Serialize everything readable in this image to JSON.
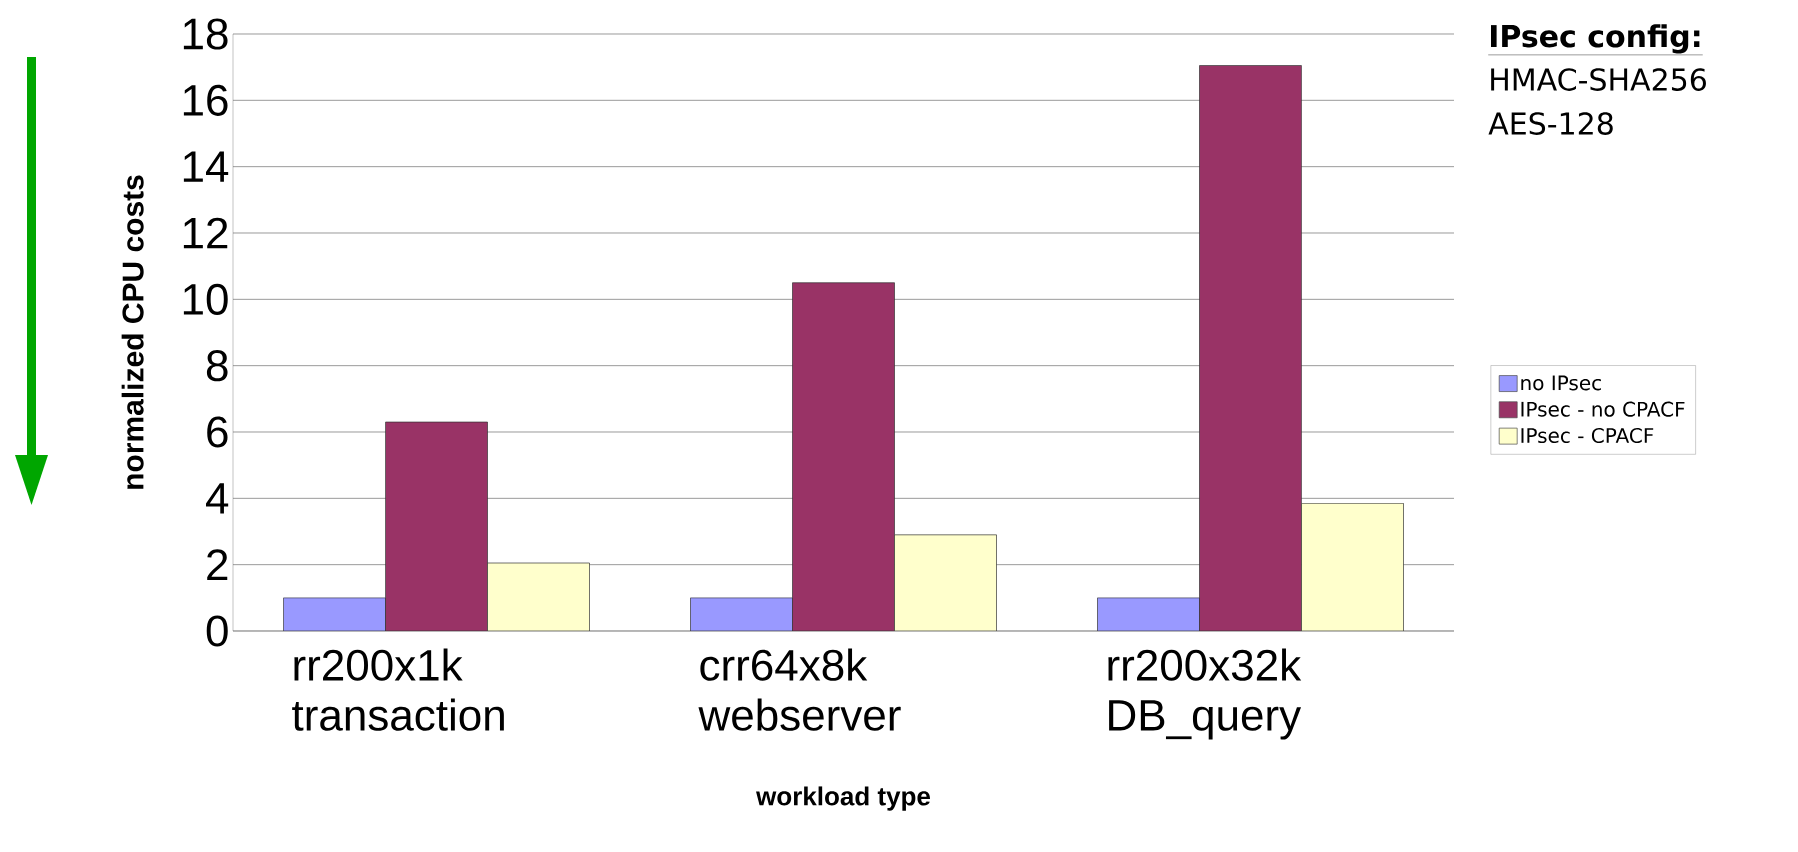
{
  "chart_data": {
    "type": "bar",
    "xlabel": "workload type",
    "ylabel": "normalized CPU costs",
    "categories": [
      "rr200x1k transaction",
      "crr64x8k webserver",
      "rr200x32k DB_query"
    ],
    "series": [
      {
        "name": "no IPsec",
        "color": "#9999ff",
        "values": [
          1,
          1,
          1
        ]
      },
      {
        "name": "IPsec - no CPACF",
        "color": "#993366",
        "values": [
          6.3,
          10.5,
          17.05
        ]
      },
      {
        "name": "IPsec - CPACF",
        "color": "#ffffcc",
        "values": [
          2.05,
          2.9,
          3.85
        ]
      }
    ],
    "ylim": [
      0,
      18
    ],
    "yticks": [
      0,
      2,
      4,
      6,
      8,
      10,
      12,
      14,
      16,
      18
    ],
    "grid": "y",
    "legend": "right",
    "annotations": [
      "IPsec config:",
      "HMAC-SHA256",
      "AES-128"
    ]
  }
}
